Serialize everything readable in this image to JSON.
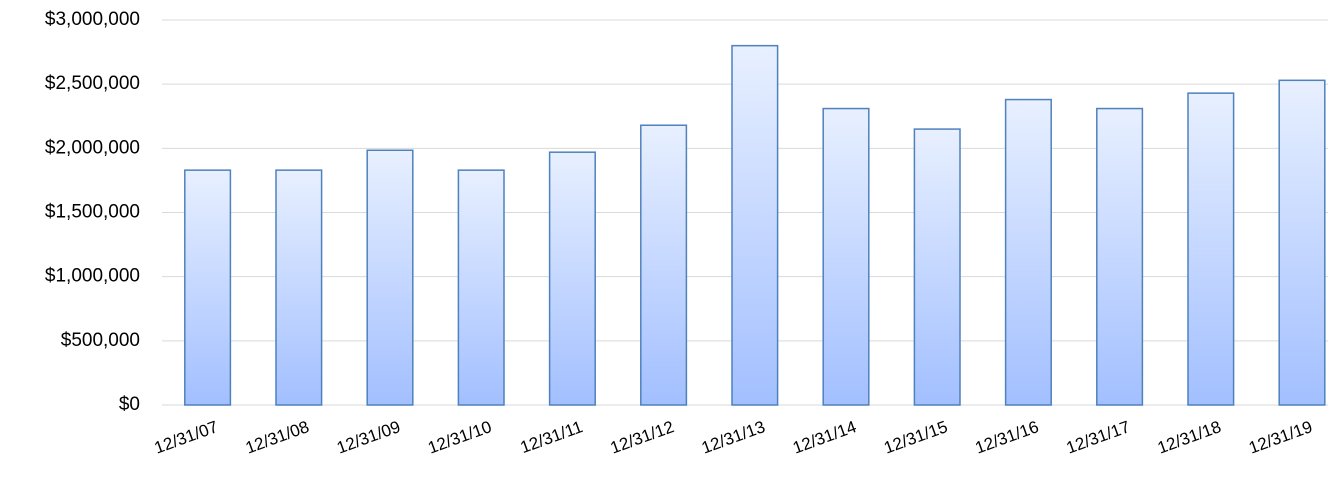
{
  "chart_data": {
    "type": "bar",
    "categories": [
      "12/31/07",
      "12/31/08",
      "12/31/09",
      "12/31/10",
      "12/31/11",
      "12/31/12",
      "12/31/13",
      "12/31/14",
      "12/31/15",
      "12/31/16",
      "12/31/17",
      "12/31/18",
      "12/31/19"
    ],
    "values": [
      1830000,
      1830000,
      1985000,
      1830000,
      1970000,
      2180000,
      2800000,
      2310000,
      2150000,
      2380000,
      2310000,
      2430000,
      2530000
    ],
    "color": "#4f81bd",
    "ylim": [
      0,
      3000000
    ],
    "yticks": [
      {
        "value": 0,
        "label": "$0"
      },
      {
        "value": 500000,
        "label": "$500,000"
      },
      {
        "value": 1000000,
        "label": "$1,000,000"
      },
      {
        "value": 1500000,
        "label": "$1,500,000"
      },
      {
        "value": 2000000,
        "label": "$2,000,000"
      },
      {
        "value": 2500000,
        "label": "$2,500,000"
      },
      {
        "value": 3000000,
        "label": "$3,000,000"
      }
    ],
    "grid": true
  }
}
